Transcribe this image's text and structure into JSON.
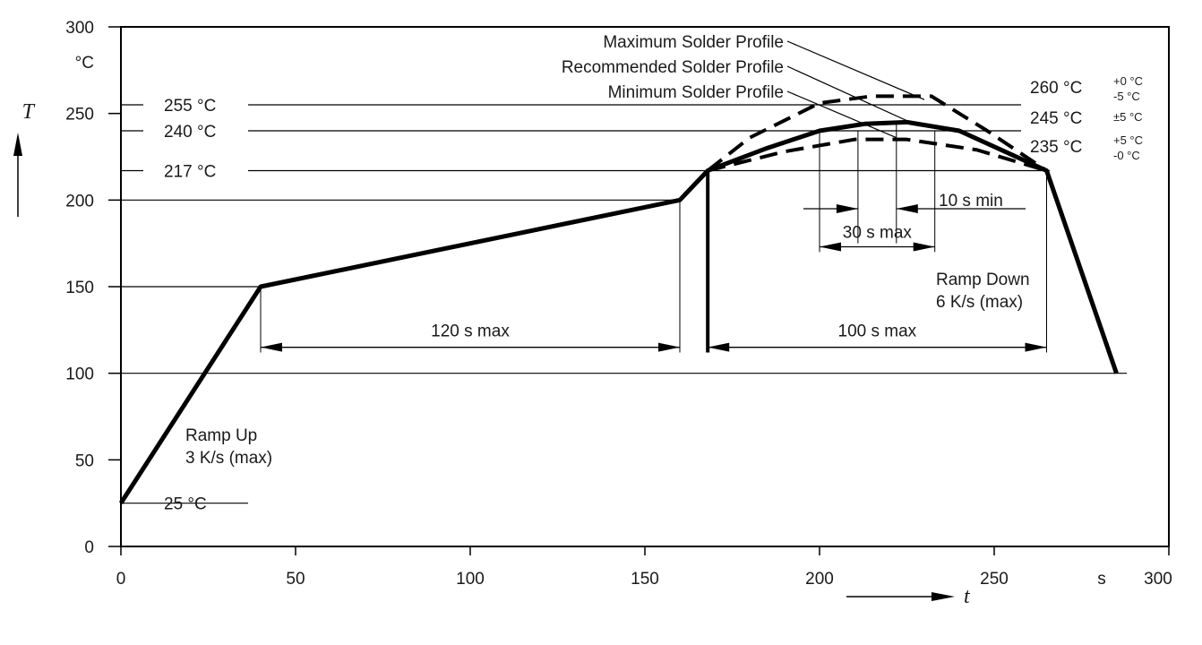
{
  "chart_data": {
    "type": "line",
    "xlim": [
      0,
      300
    ],
    "ylim": [
      0,
      300
    ],
    "x_ticks": [
      0,
      50,
      100,
      150,
      200,
      250,
      300
    ],
    "y_ticks": [
      0,
      50,
      100,
      150,
      200,
      250,
      300
    ],
    "x_unit_label": "s",
    "y_unit_label": "°C",
    "x_symbol": "t",
    "y_symbol": "T",
    "reference_levels": [
      {
        "label": "255 °C",
        "y": 255
      },
      {
        "label": "240 °C",
        "y": 240
      },
      {
        "label": "217 °C",
        "y": 217
      },
      {
        "label": "25 °C",
        "y": 25
      }
    ],
    "series": [
      {
        "name": "Recommended Solder Profile",
        "style": "solid",
        "x": [
          0,
          40,
          160,
          168,
          185,
          200,
          213,
          225,
          240,
          265,
          285
        ],
        "y": [
          25,
          150,
          200,
          217,
          230,
          240,
          244,
          245,
          240,
          217,
          100
        ]
      },
      {
        "name": "Maximum Solder Profile",
        "style": "dashed",
        "x": [
          168,
          180,
          200,
          215,
          232,
          248,
          265
        ],
        "y": [
          217,
          236,
          256,
          260,
          260,
          240,
          217
        ]
      },
      {
        "name": "Minimum Solder Profile",
        "style": "dashed",
        "x": [
          168,
          190,
          210,
          225,
          245,
          265
        ],
        "y": [
          217,
          228,
          235,
          235,
          229,
          217
        ]
      }
    ],
    "profile_labels": [
      {
        "text": "Maximum Solder Profile",
        "target_x": 230,
        "target_y": 258
      },
      {
        "text": "Recommended Solder Profile",
        "target_x": 227,
        "target_y": 244
      },
      {
        "text": "Minimum Solder Profile",
        "target_x": 222,
        "target_y": 236
      }
    ],
    "peak_labels": [
      {
        "main": "260 °C",
        "upper": "+0 °C",
        "lower": "-5 °C"
      },
      {
        "main": "245 °C",
        "upper": "±5 °C",
        "lower": ""
      },
      {
        "main": "235 °C",
        "upper": "+5 °C",
        "lower": "-0 °C"
      }
    ],
    "annotations": {
      "ramp_up": [
        "Ramp Up",
        "3 K/s (max)"
      ],
      "ramp_down": [
        "Ramp Down",
        "6 K/s (max)"
      ],
      "preheat": {
        "text": "120 s max",
        "x1": 40,
        "x2": 160,
        "y": 115
      },
      "above_liquidus": {
        "text": "100 s max",
        "x1": 168,
        "x2": 265,
        "y": 115
      },
      "near_peak": {
        "text": "30 s max",
        "x1": 200,
        "x2": 233,
        "y": 173
      },
      "at_peak": {
        "text": "10 s min",
        "x1": 211,
        "x2": 222,
        "y": 195
      }
    }
  }
}
